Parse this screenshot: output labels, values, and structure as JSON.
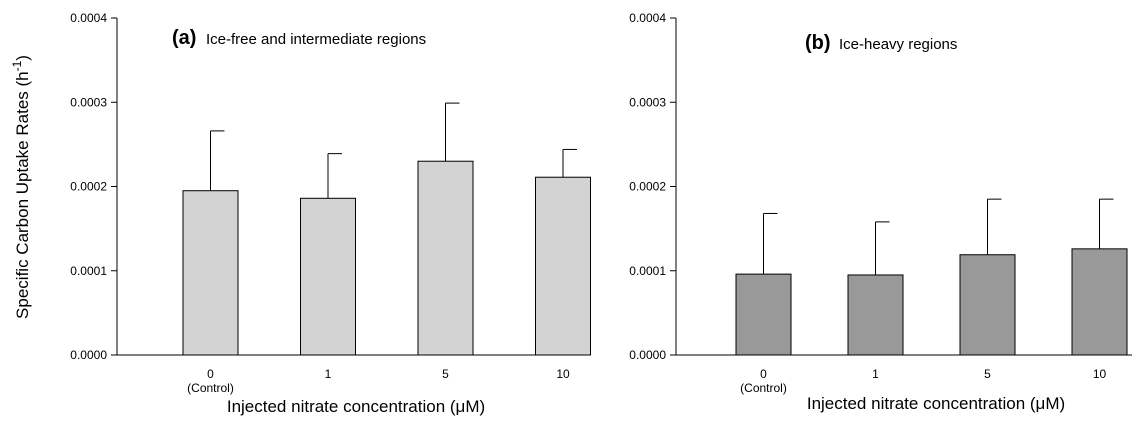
{
  "ylabel": "Specific Carbon Uptake Rates (h",
  "ylabel_sup": "-1",
  "ylabel_end": ")",
  "chart_data": [
    {
      "type": "bar",
      "panel_tag": "(a)",
      "title": "Ice-free and intermediate regions",
      "categories": [
        "0",
        "1",
        "5",
        "10"
      ],
      "category_sublabels": [
        "(Control)",
        "",
        "",
        ""
      ],
      "values": [
        0.000195,
        0.000186,
        0.00023,
        0.000211
      ],
      "errors": [
        7.1e-05,
        5.3e-05,
        6.9e-05,
        3.3e-05
      ],
      "xlabel": "Injected nitrate concentration (μM)",
      "ylim": [
        0,
        0.0004
      ],
      "yticks": [
        0.0,
        0.0001,
        0.0002,
        0.0003,
        0.0004
      ],
      "ytick_labels": [
        "0.0000",
        "0.0001",
        "0.0002",
        "0.0003",
        "0.0004"
      ],
      "bar_color": "#d3d3d3"
    },
    {
      "type": "bar",
      "panel_tag": "(b)",
      "title": "Ice-heavy regions",
      "categories": [
        "0",
        "1",
        "5",
        "10"
      ],
      "category_sublabels": [
        "(Control)",
        "",
        "",
        ""
      ],
      "values": [
        9.6e-05,
        9.5e-05,
        0.000119,
        0.000126
      ],
      "errors": [
        7.2e-05,
        6.3e-05,
        6.6e-05,
        5.9e-05
      ],
      "xlabel": "Injected nitrate concentration (μM)",
      "ylim": [
        0,
        0.0004
      ],
      "yticks": [
        0.0,
        0.0001,
        0.0002,
        0.0003,
        0.0004
      ],
      "ytick_labels": [
        "0.0000",
        "0.0001",
        "0.0002",
        "0.0003",
        "0.0004"
      ],
      "bar_color": "#999999"
    }
  ]
}
